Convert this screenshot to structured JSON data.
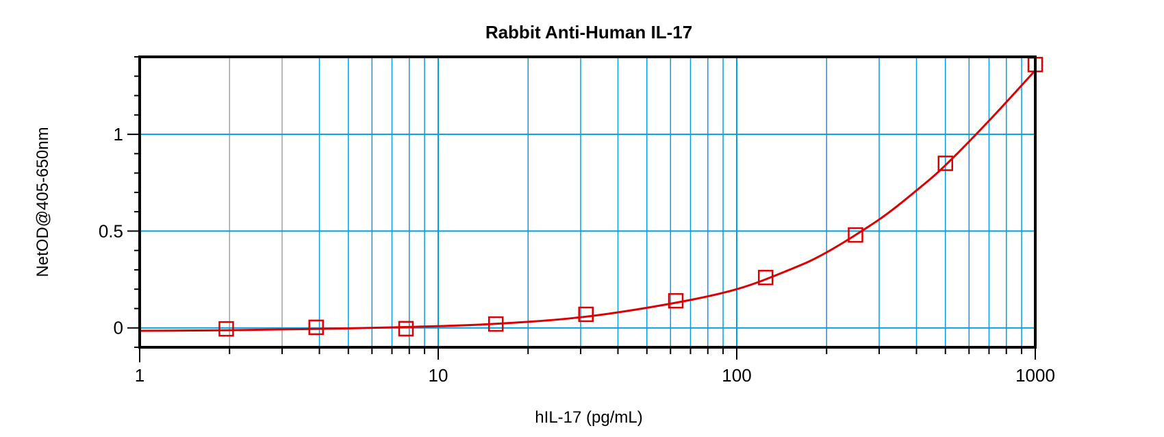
{
  "chart_data": {
    "type": "scatter",
    "title": "Rabbit Anti-Human IL-17",
    "xlabel": "hIL-17 (pg/mL)",
    "ylabel": "NetOD@405-650nm",
    "x_scale": "log",
    "xlim": [
      1,
      1000
    ],
    "ylim": [
      -0.1,
      1.4
    ],
    "x_ticks": [
      "1",
      "10",
      "100",
      "1000"
    ],
    "y_ticks": [
      "0",
      "0.5",
      "1"
    ],
    "grid": true,
    "colors": {
      "points": "#dd0000",
      "curve": "#dd0000",
      "grid": "#00a0e0",
      "axis": "#000000"
    },
    "marker": "open-square",
    "series": [
      {
        "x": [
          1.95,
          3.9,
          7.8,
          15.6,
          31.25,
          62.5,
          125,
          250,
          500,
          1000
        ],
        "y": [
          -0.005,
          0.003,
          -0.004,
          0.02,
          0.07,
          0.14,
          0.26,
          0.48,
          0.85,
          1.36
        ]
      }
    ],
    "fit_curve": {
      "x": [
        1,
        2,
        4,
        8,
        15,
        30,
        60,
        100,
        150,
        200,
        300,
        400,
        500,
        700,
        1000
      ],
      "y": [
        -0.015,
        -0.012,
        -0.005,
        0.005,
        0.02,
        0.055,
        0.125,
        0.2,
        0.3,
        0.39,
        0.56,
        0.71,
        0.84,
        1.07,
        1.33
      ]
    }
  }
}
